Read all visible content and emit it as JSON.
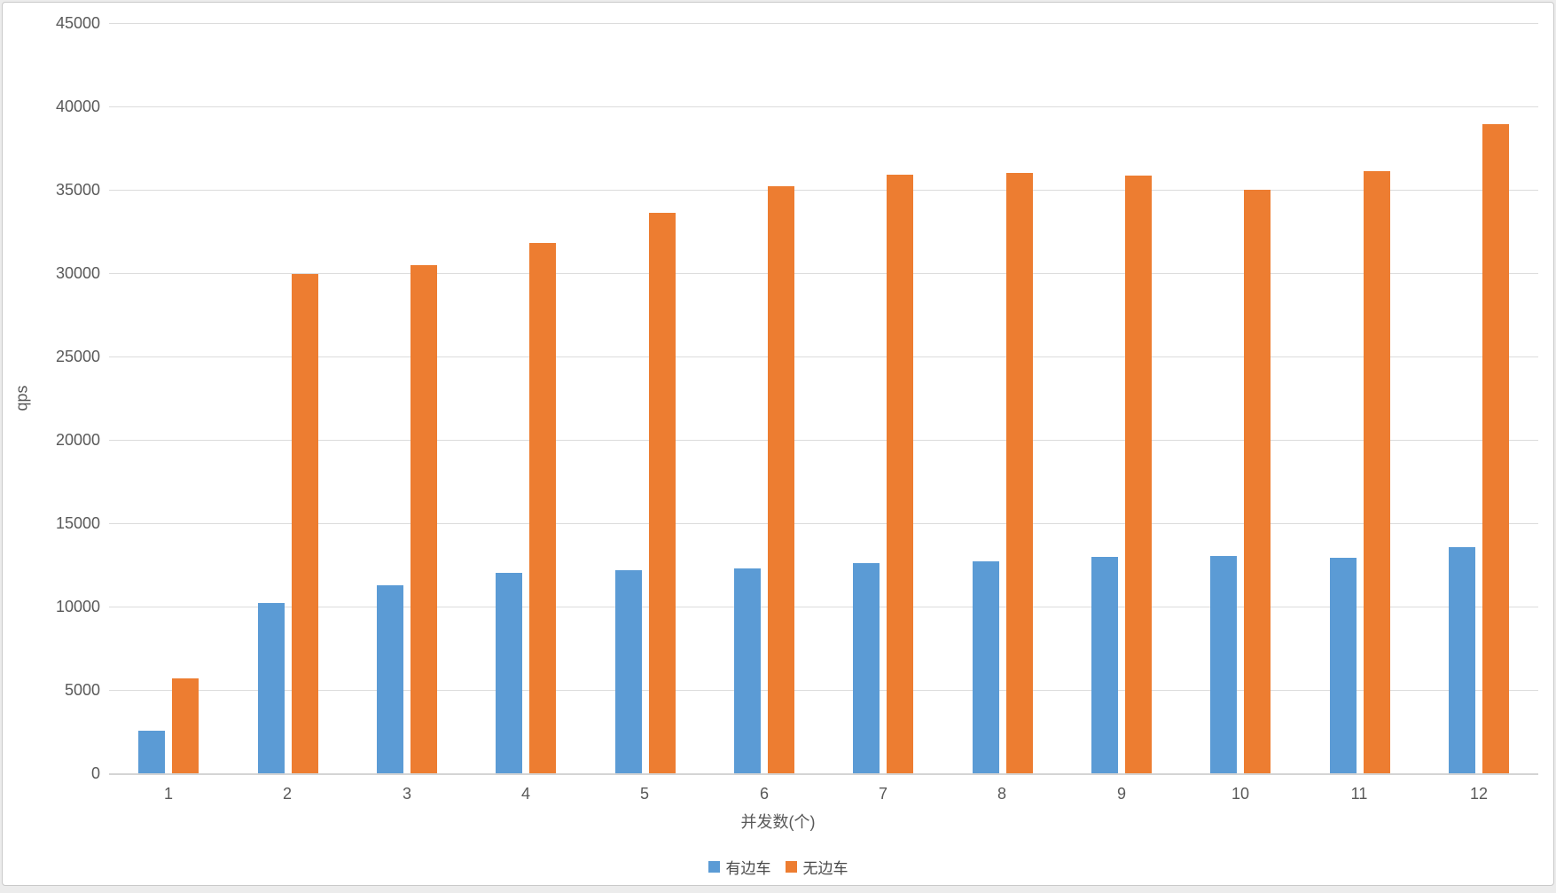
{
  "page": {
    "background": "#ececec",
    "card_border": "#c9c9c9",
    "text_color": "#595959",
    "gridline_color": "#dcdcdc"
  },
  "chart_data": {
    "type": "bar",
    "title": "",
    "categories": [
      "1",
      "2",
      "3",
      "4",
      "5",
      "6",
      "7",
      "8",
      "9",
      "10",
      "11",
      "12"
    ],
    "series": [
      {
        "name": "有边车",
        "color": "#5B9BD5",
        "values": [
          2550,
          10200,
          11300,
          12000,
          12200,
          12300,
          12600,
          12700,
          13000,
          13050,
          12950,
          13550
        ]
      },
      {
        "name": "无边车",
        "color": "#ED7D31",
        "values": [
          5700,
          29950,
          30500,
          31800,
          33600,
          35200,
          35900,
          36000,
          35850,
          35000,
          36100,
          38950
        ]
      }
    ],
    "xlabel": "并发数(个)",
    "ylabel": "qps",
    "ylim": [
      0,
      45000
    ],
    "ytick_step": 5000,
    "grid": true,
    "legend_position": "bottom"
  }
}
